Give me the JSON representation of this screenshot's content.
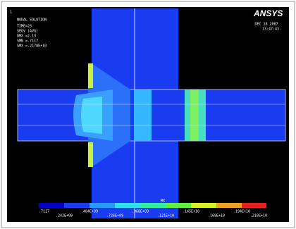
{
  "window_number": "1",
  "header": {
    "title": "NODAL SOLUTION",
    "info": [
      "TIME=23",
      "SEQV    (AVG)",
      "DMX =2.13",
      "SMN =.7117",
      "SMX =.2178E+10"
    ]
  },
  "logo": "ANSYS",
  "date": "DEC 18 2007",
  "time": "13:47:43",
  "legend": {
    "labels_top": [
      ".7117",
      ".484E+09",
      ".968E+09",
      ".145E+10",
      ".194E+10"
    ],
    "labels_bottom": [
      ".242E+09",
      ".726E+09",
      ".121E+10",
      ".169E+10",
      ".218E+10"
    ]
  },
  "marker": "MX"
}
